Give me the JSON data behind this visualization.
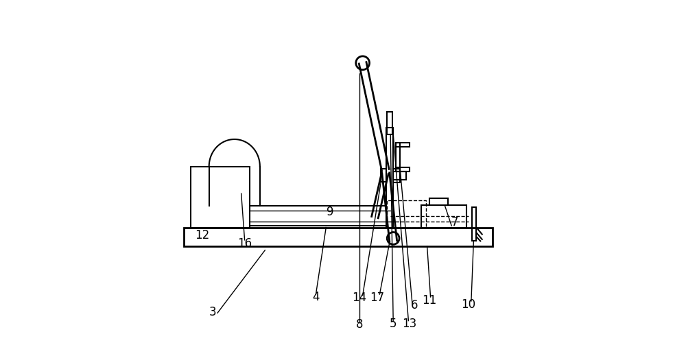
{
  "bg_color": "#ffffff",
  "line_color": "#000000",
  "figsize": [
    10.0,
    5.0
  ],
  "dpi": 100
}
